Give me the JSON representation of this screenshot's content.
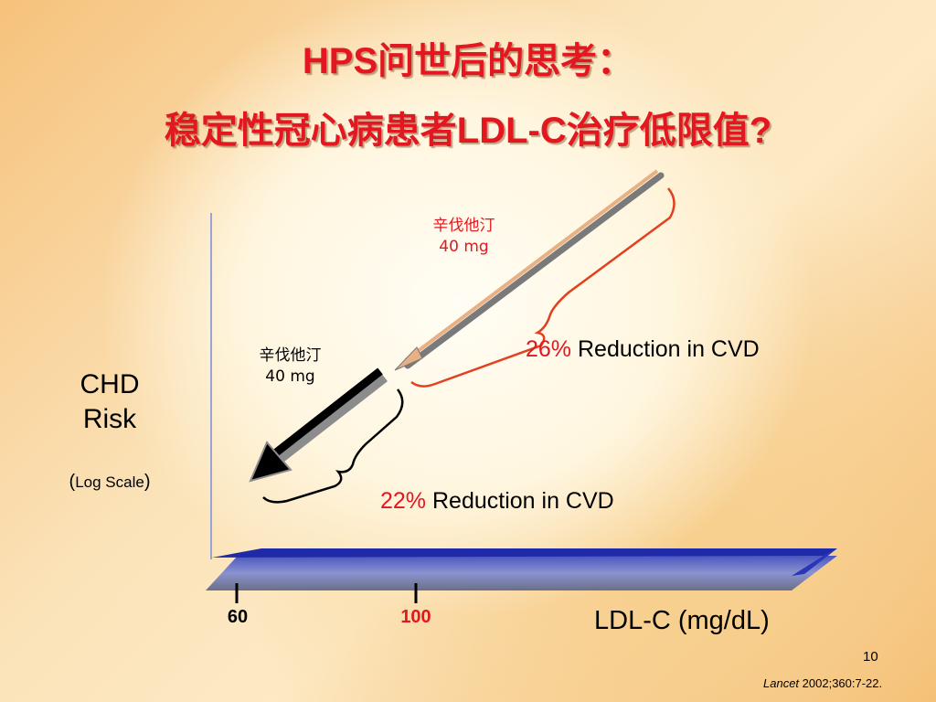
{
  "title": {
    "line1": "HPS问世后的思考：",
    "line2": "稳定性冠心病患者LDL-C治疗低限值?"
  },
  "diagram": {
    "upper_arrow_label_drug": "辛伐他汀",
    "upper_arrow_label_dose": "40 mg",
    "lower_arrow_label_drug": "辛伐他汀",
    "lower_arrow_label_dose": "40 mg",
    "upper_reduction_pct": "26%",
    "upper_reduction_text": " Reduction in CVD",
    "lower_reduction_pct": "22%",
    "lower_reduction_text": " Reduction in CVD"
  },
  "axes": {
    "y_label_line1": "CHD",
    "y_label_line2": "Risk",
    "y_scale_open": "(",
    "y_scale_text": "Log Scale",
    "y_scale_close": ")",
    "x_label": "LDL-C (mg/dL)",
    "x_ticks": [
      "60",
      "100"
    ]
  },
  "footer": {
    "page_number": "10",
    "citation_journal": "Lancet",
    "citation_rest": " 2002;360:7-22."
  },
  "colors": {
    "accent_red": "#e3171f",
    "axis_blue": "#1e2aa8",
    "upper_arrow": "#e8b083"
  }
}
